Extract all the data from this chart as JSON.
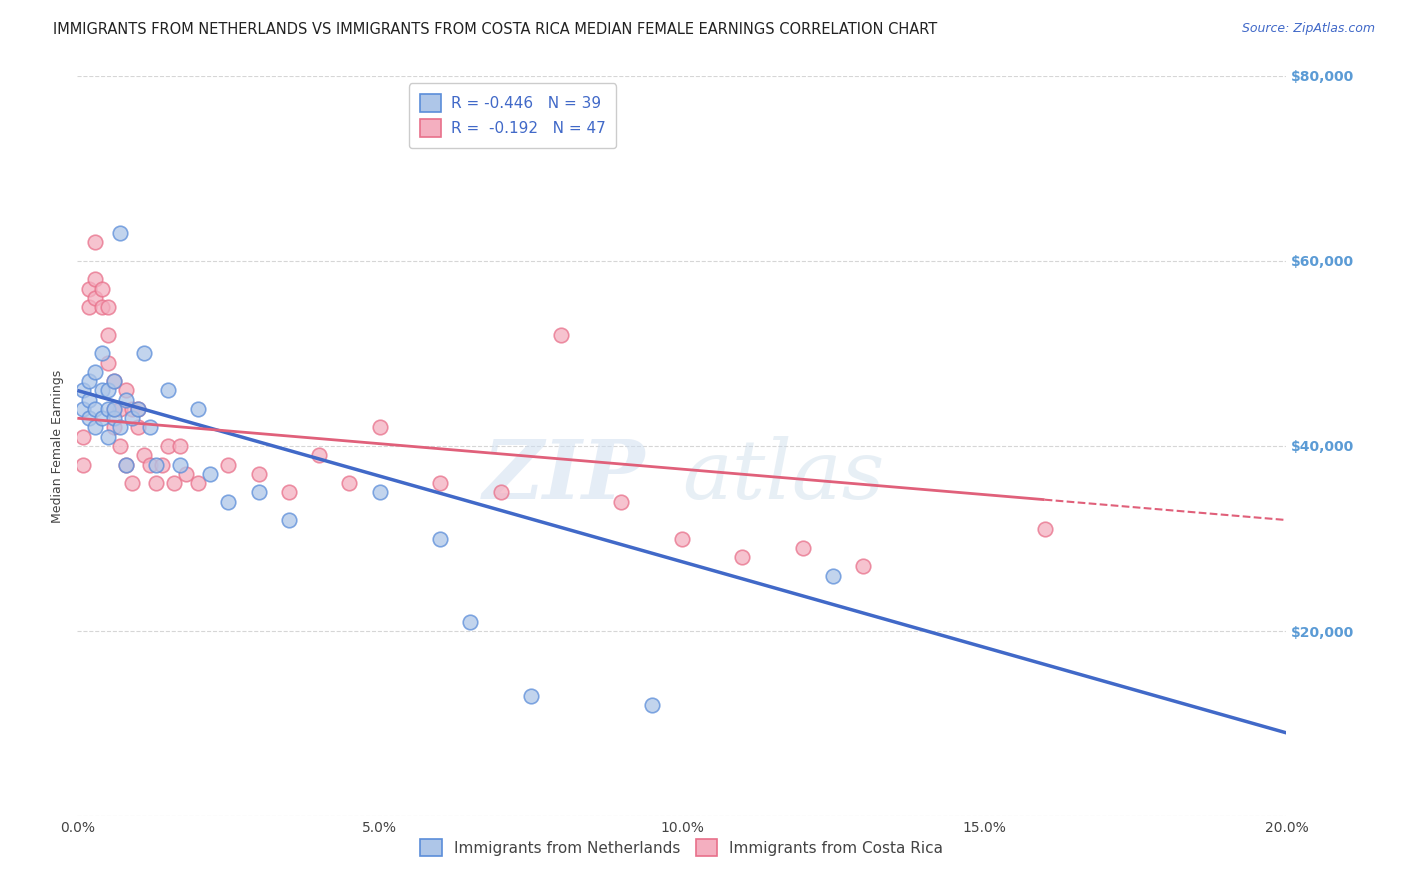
{
  "title": "IMMIGRANTS FROM NETHERLANDS VS IMMIGRANTS FROM COSTA RICA MEDIAN FEMALE EARNINGS CORRELATION CHART",
  "source": "Source: ZipAtlas.com",
  "ylabel": "Median Female Earnings",
  "x_min": 0.0,
  "x_max": 0.2,
  "y_min": 0,
  "y_max": 80000,
  "yticks": [
    0,
    20000,
    40000,
    60000,
    80000
  ],
  "ytick_labels": [
    "",
    "$20,000",
    "$40,000",
    "$60,000",
    "$80,000"
  ],
  "xticks": [
    0.0,
    0.05,
    0.1,
    0.15,
    0.2
  ],
  "xtick_labels": [
    "0.0%",
    "5.0%",
    "10.0%",
    "15.0%",
    "20.0%"
  ],
  "netherlands_color": "#aec6e8",
  "costa_rica_color": "#f4afc0",
  "netherlands_edge_color": "#5b8dd9",
  "costa_rica_edge_color": "#e8708a",
  "netherlands_line_color": "#4169c8",
  "costa_rica_line_color": "#e0607a",
  "background_color": "#ffffff",
  "grid_color": "#cccccc",
  "netherlands_R": -0.446,
  "netherlands_N": 39,
  "costa_rica_R": -0.192,
  "costa_rica_N": 47,
  "nl_intercept": 46000,
  "nl_slope": -185000,
  "cr_intercept": 43000,
  "cr_slope": -55000,
  "netherlands_x": [
    0.001,
    0.001,
    0.002,
    0.002,
    0.002,
    0.003,
    0.003,
    0.003,
    0.004,
    0.004,
    0.004,
    0.005,
    0.005,
    0.005,
    0.006,
    0.006,
    0.006,
    0.007,
    0.007,
    0.008,
    0.008,
    0.009,
    0.01,
    0.011,
    0.012,
    0.013,
    0.015,
    0.017,
    0.02,
    0.022,
    0.025,
    0.03,
    0.035,
    0.05,
    0.06,
    0.065,
    0.075,
    0.095,
    0.125
  ],
  "netherlands_y": [
    44000,
    46000,
    43000,
    47000,
    45000,
    48000,
    44000,
    42000,
    46000,
    43000,
    50000,
    44000,
    46000,
    41000,
    43000,
    47000,
    44000,
    63000,
    42000,
    45000,
    38000,
    43000,
    44000,
    50000,
    42000,
    38000,
    46000,
    38000,
    44000,
    37000,
    34000,
    35000,
    32000,
    35000,
    30000,
    21000,
    13000,
    12000,
    26000
  ],
  "costa_rica_x": [
    0.001,
    0.001,
    0.002,
    0.002,
    0.003,
    0.003,
    0.003,
    0.004,
    0.004,
    0.005,
    0.005,
    0.005,
    0.006,
    0.006,
    0.006,
    0.007,
    0.007,
    0.008,
    0.008,
    0.009,
    0.009,
    0.01,
    0.01,
    0.011,
    0.012,
    0.013,
    0.014,
    0.015,
    0.016,
    0.017,
    0.018,
    0.02,
    0.025,
    0.03,
    0.035,
    0.04,
    0.045,
    0.05,
    0.06,
    0.07,
    0.08,
    0.09,
    0.1,
    0.11,
    0.12,
    0.13,
    0.16
  ],
  "costa_rica_y": [
    38000,
    41000,
    55000,
    57000,
    58000,
    62000,
    56000,
    55000,
    57000,
    55000,
    52000,
    49000,
    47000,
    44000,
    42000,
    44000,
    40000,
    46000,
    38000,
    44000,
    36000,
    44000,
    42000,
    39000,
    38000,
    36000,
    38000,
    40000,
    36000,
    40000,
    37000,
    36000,
    38000,
    37000,
    35000,
    39000,
    36000,
    42000,
    36000,
    35000,
    52000,
    34000,
    30000,
    28000,
    29000,
    27000,
    31000
  ],
  "watermark_zip": "ZIP",
  "watermark_atlas": "atlas",
  "title_fontsize": 10.5,
  "axis_label_fontsize": 9,
  "tick_fontsize": 10,
  "legend_fontsize": 11,
  "marker_size": 110,
  "right_ytick_color": "#5b9bd5"
}
